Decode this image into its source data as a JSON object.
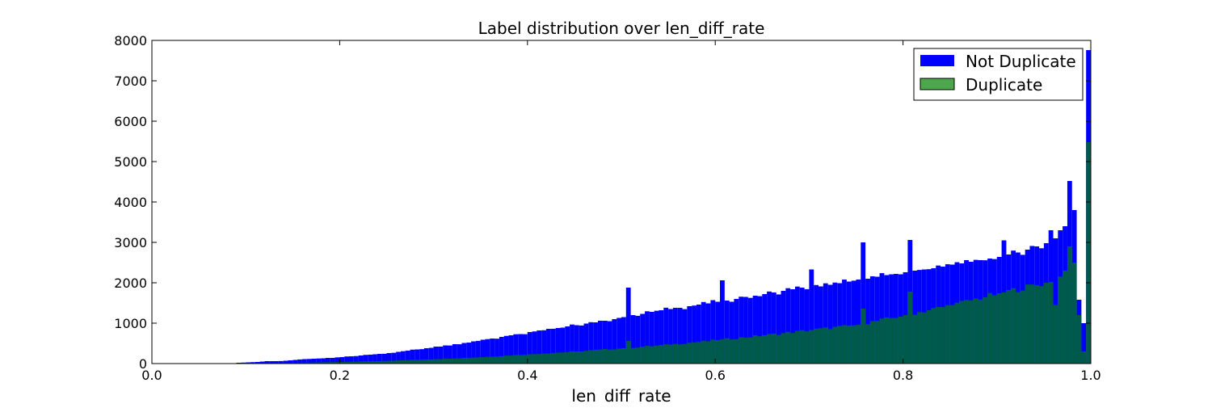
{
  "chart_data": {
    "type": "bar",
    "title": "Label distribution over len_diff_rate",
    "xlabel": "len_diff_rate",
    "ylabel": "",
    "xlim": [
      0.0,
      1.0
    ],
    "ylim": [
      0,
      8000
    ],
    "x_ticks": [
      "0.0",
      "0.2",
      "0.4",
      "0.6",
      "0.8",
      "1.0"
    ],
    "y_ticks": [
      "0",
      "1000",
      "2000",
      "3000",
      "4000",
      "5000",
      "6000",
      "7000",
      "8000"
    ],
    "bin_width": 0.005,
    "legend_position": "top-right",
    "overlay_color": "#005a4b",
    "series": [
      {
        "name": "Not Duplicate",
        "color": "#0000ff",
        "points": [
          [
            0.09,
            20
          ],
          [
            0.1,
            30
          ],
          [
            0.11,
            40
          ],
          [
            0.12,
            60
          ],
          [
            0.13,
            60
          ],
          [
            0.14,
            70
          ],
          [
            0.15,
            90
          ],
          [
            0.16,
            110
          ],
          [
            0.17,
            120
          ],
          [
            0.18,
            130
          ],
          [
            0.19,
            140
          ],
          [
            0.2,
            160
          ],
          [
            0.21,
            180
          ],
          [
            0.22,
            200
          ],
          [
            0.23,
            220
          ],
          [
            0.24,
            240
          ],
          [
            0.25,
            260
          ],
          [
            0.26,
            290
          ],
          [
            0.27,
            320
          ],
          [
            0.28,
            350
          ],
          [
            0.29,
            380
          ],
          [
            0.3,
            420
          ],
          [
            0.31,
            450
          ],
          [
            0.32,
            480
          ],
          [
            0.33,
            510
          ],
          [
            0.34,
            550
          ],
          [
            0.35,
            590
          ],
          [
            0.36,
            620
          ],
          [
            0.37,
            660
          ],
          [
            0.38,
            700
          ],
          [
            0.39,
            730
          ],
          [
            0.4,
            780
          ],
          [
            0.41,
            820
          ],
          [
            0.42,
            860
          ],
          [
            0.43,
            880
          ],
          [
            0.44,
            920
          ],
          [
            0.45,
            950
          ],
          [
            0.46,
            990
          ],
          [
            0.47,
            1020
          ],
          [
            0.48,
            1060
          ],
          [
            0.49,
            1100
          ],
          [
            0.495,
            1130
          ],
          [
            0.5,
            1150
          ],
          [
            0.505,
            1880
          ],
          [
            0.51,
            1200
          ],
          [
            0.52,
            1230
          ],
          [
            0.53,
            1280
          ],
          [
            0.54,
            1320
          ],
          [
            0.55,
            1350
          ],
          [
            0.56,
            1380
          ],
          [
            0.57,
            1420
          ],
          [
            0.58,
            1460
          ],
          [
            0.59,
            1490
          ],
          [
            0.6,
            1530
          ],
          [
            0.605,
            2060
          ],
          [
            0.61,
            1560
          ],
          [
            0.62,
            1600
          ],
          [
            0.63,
            1650
          ],
          [
            0.64,
            1680
          ],
          [
            0.65,
            1720
          ],
          [
            0.66,
            1760
          ],
          [
            0.67,
            1800
          ],
          [
            0.68,
            1840
          ],
          [
            0.69,
            1880
          ],
          [
            0.7,
            2330
          ],
          [
            0.71,
            1910
          ],
          [
            0.72,
            1950
          ],
          [
            0.73,
            1990
          ],
          [
            0.74,
            2030
          ],
          [
            0.75,
            2080
          ],
          [
            0.755,
            3000
          ],
          [
            0.76,
            2100
          ],
          [
            0.77,
            2150
          ],
          [
            0.78,
            2190
          ],
          [
            0.79,
            2220
          ],
          [
            0.8,
            2260
          ],
          [
            0.805,
            3060
          ],
          [
            0.81,
            2300
          ],
          [
            0.82,
            2330
          ],
          [
            0.83,
            2360
          ],
          [
            0.84,
            2400
          ],
          [
            0.85,
            2450
          ],
          [
            0.86,
            2480
          ],
          [
            0.87,
            2520
          ],
          [
            0.88,
            2560
          ],
          [
            0.89,
            2600
          ],
          [
            0.9,
            2640
          ],
          [
            0.905,
            3050
          ],
          [
            0.91,
            2700
          ],
          [
            0.92,
            2750
          ],
          [
            0.93,
            2820
          ],
          [
            0.94,
            2900
          ],
          [
            0.95,
            2980
          ],
          [
            0.955,
            3300
          ],
          [
            0.96,
            3100
          ],
          [
            0.965,
            3300
          ],
          [
            0.97,
            3400
          ],
          [
            0.975,
            4520
          ],
          [
            0.98,
            3800
          ],
          [
            0.985,
            1580
          ],
          [
            0.99,
            1000
          ],
          [
            0.995,
            7760
          ]
        ]
      },
      {
        "name": "Duplicate",
        "color": "#4ca64c",
        "points": [
          [
            0.1,
            5
          ],
          [
            0.15,
            20
          ],
          [
            0.2,
            40
          ],
          [
            0.25,
            70
          ],
          [
            0.3,
            110
          ],
          [
            0.35,
            160
          ],
          [
            0.4,
            230
          ],
          [
            0.45,
            300
          ],
          [
            0.5,
            380
          ],
          [
            0.505,
            560
          ],
          [
            0.55,
            470
          ],
          [
            0.6,
            580
          ],
          [
            0.65,
            700
          ],
          [
            0.7,
            830
          ],
          [
            0.75,
            960
          ],
          [
            0.755,
            1360
          ],
          [
            0.8,
            1200
          ],
          [
            0.805,
            1780
          ],
          [
            0.85,
            1450
          ],
          [
            0.9,
            1740
          ],
          [
            0.95,
            2000
          ],
          [
            0.96,
            1450
          ],
          [
            0.97,
            2300
          ],
          [
            0.975,
            2900
          ],
          [
            0.98,
            2500
          ],
          [
            0.985,
            1200
          ],
          [
            0.99,
            300
          ],
          [
            0.995,
            5480
          ]
        ]
      }
    ]
  }
}
